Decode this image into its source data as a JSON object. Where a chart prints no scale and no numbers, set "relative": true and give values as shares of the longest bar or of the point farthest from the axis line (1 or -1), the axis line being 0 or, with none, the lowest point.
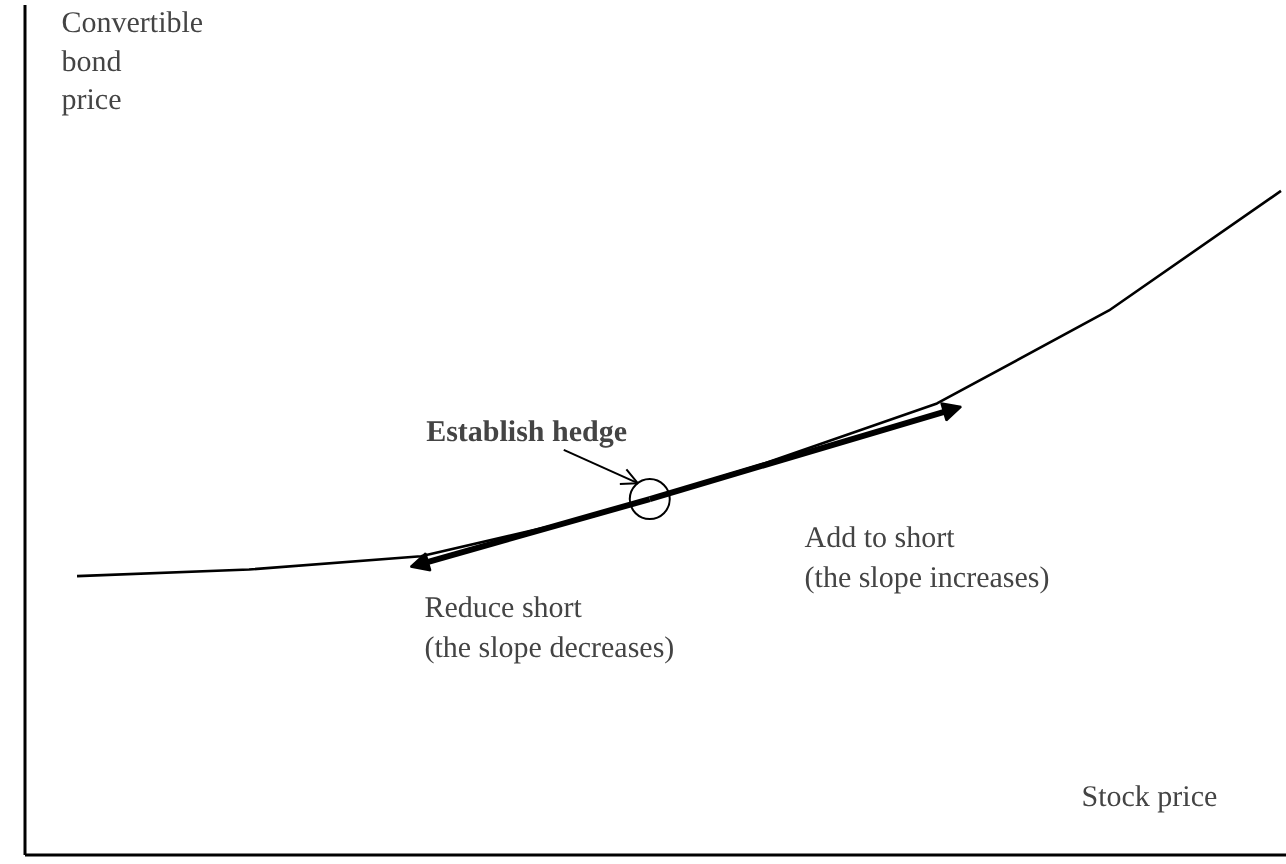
{
  "chart_data": {
    "type": "line",
    "relative": true,
    "xlabel": "Stock price",
    "ylabel": "Convertible\nbond\nprice",
    "categories": [
      null,
      null,
      null,
      null,
      null,
      null,
      null,
      null
    ],
    "series": [
      {
        "color": "#000000",
        "values": [
          0.42,
          0.43,
          0.45,
          0.51,
          0.59,
          0.68,
          0.82,
          1.0
        ]
      }
    ],
    "annotations": [
      "Establish hedge",
      "Reduce short\n(the slope decreases)",
      "Add to short\n(the slope increases)"
    ],
    "marker": "none",
    "line_style": "solid"
  }
}
